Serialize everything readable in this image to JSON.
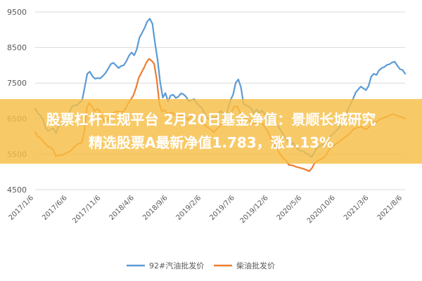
{
  "banner": {
    "line1": "股票杠杆正规平台 2月20日基金净值：景顺长城研究",
    "line2": "精选股票A最新净值1.783，涨1.13%"
  },
  "chart_data": {
    "type": "line",
    "title": "",
    "xlabel": "",
    "ylabel": "",
    "ylim": [
      4500,
      9500
    ],
    "yticks": [
      4500,
      5500,
      6500,
      7500,
      8500,
      9500
    ],
    "ytick_labels": [
      "4500",
      "5500",
      "6500",
      "7500",
      "8500",
      "9500"
    ],
    "xtick_labels": [
      "2017/1/6",
      "2017/6/6",
      "2017/11/6",
      "2018/4/6",
      "2018/9/6",
      "2019/2/6",
      "2019/7/6",
      "2019/12/6",
      "2020/5/6",
      "2020/10/6",
      "2021/3/6",
      "2021/8/6"
    ],
    "grid": "horizontal",
    "legend_position": "bottom",
    "series": [
      {
        "name": "92#汽油批发价",
        "color": "#5b9bd5",
        "values": [
          6780,
          6660,
          6580,
          6470,
          6240,
          6150,
          6200,
          6220,
          6090,
          6280,
          6330,
          6320,
          6450,
          6650,
          6820,
          6880,
          6870,
          6950,
          7010,
          7380,
          7760,
          7820,
          7690,
          7620,
          7640,
          7630,
          7700,
          7780,
          7900,
          8030,
          8070,
          8000,
          7920,
          7980,
          8000,
          8110,
          8270,
          8360,
          8280,
          8450,
          8770,
          8910,
          9050,
          9230,
          9310,
          9170,
          8620,
          8150,
          7510,
          7090,
          7220,
          6980,
          7150,
          7170,
          7080,
          7120,
          7210,
          7180,
          7110,
          6980,
          7020,
          7050,
          6930,
          6860,
          6800,
          6660,
          6520,
          6470,
          6540,
          6500,
          6600,
          6710,
          6660,
          6530,
          6780,
          7020,
          7180,
          7510,
          7600,
          7380,
          6910,
          6870,
          6840,
          6780,
          6650,
          6760,
          6660,
          6730,
          6650,
          6560,
          6420,
          6390,
          6340,
          6310,
          6200,
          6080,
          5960,
          5870,
          5750,
          5820,
          5710,
          5630,
          5590,
          5580,
          5520,
          5480,
          5410,
          5530,
          5660,
          5720,
          5760,
          5780,
          5830,
          5980,
          6050,
          6120,
          6190,
          6290,
          6420,
          6580,
          6750,
          6900,
          7050,
          7230,
          7320,
          7400,
          7350,
          7300,
          7420,
          7680,
          7760,
          7730,
          7860,
          7920,
          7950,
          8010,
          8030,
          8080,
          8100,
          7990,
          7890,
          7870,
          7760
        ]
      },
      {
        "name": "柴油批发价",
        "color": "#ed7d31",
        "values": [
          6120,
          6000,
          5950,
          5870,
          5790,
          5710,
          5690,
          5620,
          5440,
          5460,
          5480,
          5480,
          5540,
          5560,
          5610,
          5690,
          5760,
          5800,
          5820,
          6130,
          6820,
          6940,
          6830,
          6710,
          6780,
          6710,
          6520,
          6390,
          6470,
          6600,
          6640,
          6700,
          6700,
          6690,
          6690,
          6790,
          6930,
          7040,
          7160,
          7370,
          7640,
          7780,
          7920,
          8080,
          8180,
          8130,
          8040,
          7590,
          6920,
          6700,
          6740,
          6650,
          6650,
          6680,
          6600,
          6580,
          6600,
          6600,
          6540,
          6460,
          6560,
          6570,
          6540,
          6530,
          6470,
          6360,
          6290,
          6240,
          6190,
          6110,
          6190,
          6260,
          6370,
          6300,
          6320,
          6570,
          6700,
          6840,
          6850,
          6710,
          6500,
          6530,
          6480,
          6420,
          6360,
          6350,
          6400,
          6410,
          6350,
          6240,
          6130,
          5960,
          5810,
          5720,
          5580,
          5470,
          5380,
          5320,
          5200,
          5190,
          5170,
          5140,
          5120,
          5100,
          5080,
          5050,
          5020,
          5110,
          5250,
          5310,
          5340,
          5380,
          5420,
          5550,
          5660,
          5710,
          5770,
          5820,
          5880,
          5930,
          5990,
          6050,
          6110,
          6200,
          6230,
          6260,
          6280,
          6230,
          6200,
          6250,
          6370,
          6420,
          6400,
          6470,
          6500,
          6540,
          6550,
          6590,
          6620,
          6610,
          6570,
          6560,
          6540,
          6500
        ]
      }
    ]
  }
}
